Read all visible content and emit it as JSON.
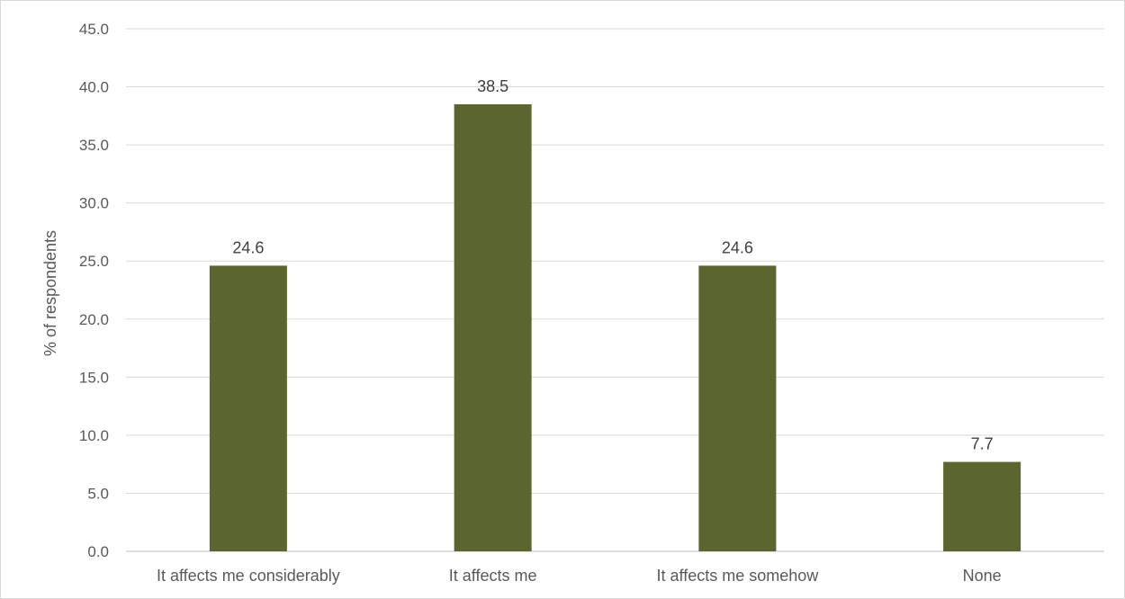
{
  "chart_data": {
    "type": "bar",
    "categories": [
      "It affects me considerably",
      "It affects me",
      "It affects me somehow",
      "None"
    ],
    "values": [
      24.6,
      38.5,
      24.6,
      7.7
    ],
    "data_labels": [
      "24.6",
      "38.5",
      "24.6",
      "7.7"
    ],
    "title": "",
    "xlabel": "",
    "ylabel": "% of respondents",
    "ylim": [
      0,
      45
    ],
    "yticks": [
      "0.0",
      "5.0",
      "10.0",
      "15.0",
      "20.0",
      "25.0",
      "30.0",
      "35.0",
      "40.0",
      "45.0"
    ],
    "grid": true,
    "legend": "none",
    "bar_color": "#5a6530",
    "grid_color": "#d9d9d9"
  }
}
